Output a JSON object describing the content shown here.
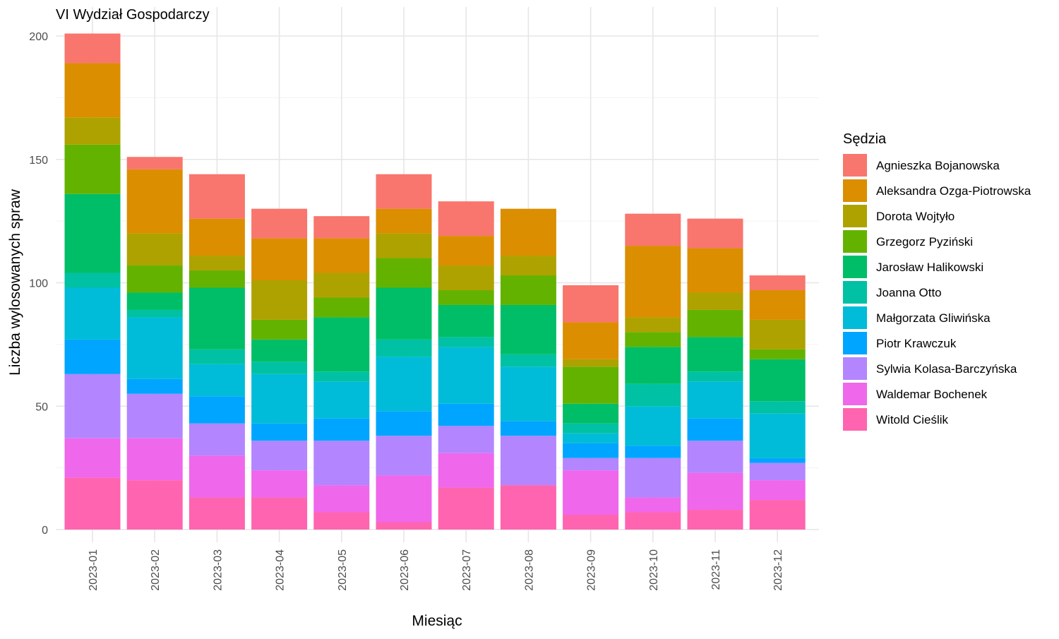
{
  "chart_data": {
    "type": "bar",
    "stacked": true,
    "title": "VI Wydział Gospodarczy",
    "xlabel": "Miesiąc",
    "ylabel": "Liczba wylosowanych spraw",
    "ylim": [
      0,
      200
    ],
    "yticks": [
      0,
      50,
      100,
      150,
      200
    ],
    "grid": true,
    "legend": {
      "title": "Sędzia",
      "position": "right"
    },
    "categories": [
      "2023-01",
      "2023-02",
      "2023-03",
      "2023-04",
      "2023-05",
      "2023-06",
      "2023-07",
      "2023-08",
      "2023-09",
      "2023-10",
      "2023-11",
      "2023-12"
    ],
    "series": [
      {
        "name": "Witold Cieślik",
        "color": "#FF64B0",
        "values": [
          21,
          20,
          13,
          13,
          7,
          3,
          17,
          18,
          6,
          7,
          8,
          12
        ]
      },
      {
        "name": "Waldemar Bochenek",
        "color": "#EF67EB",
        "values": [
          16,
          17,
          17,
          11,
          11,
          19,
          14,
          0,
          18,
          6,
          15,
          8
        ]
      },
      {
        "name": "Sylwia Kolasa-Barczyńska",
        "color": "#B385FF",
        "values": [
          26,
          18,
          13,
          12,
          18,
          16,
          11,
          20,
          5,
          16,
          13,
          7
        ]
      },
      {
        "name": "Piotr Krawczuk",
        "color": "#00A5FF",
        "values": [
          14,
          6,
          11,
          7,
          9,
          10,
          9,
          6,
          6,
          5,
          9,
          2
        ]
      },
      {
        "name": "Małgorzata Gliwińska",
        "color": "#00BCD8",
        "values": [
          21,
          25,
          13,
          20,
          15,
          22,
          23,
          22,
          4,
          16,
          15,
          18
        ]
      },
      {
        "name": "Joanna Otto",
        "color": "#00C1A3",
        "values": [
          6,
          3,
          6,
          5,
          4,
          7,
          4,
          5,
          4,
          9,
          4,
          5
        ]
      },
      {
        "name": "Jarosław Halikowski",
        "color": "#00BE67",
        "values": [
          32,
          7,
          25,
          9,
          22,
          21,
          13,
          20,
          8,
          15,
          14,
          17
        ]
      },
      {
        "name": "Grzegorz Pyziński",
        "color": "#64B200",
        "values": [
          20,
          11,
          7,
          8,
          8,
          12,
          6,
          12,
          15,
          6,
          11,
          4
        ]
      },
      {
        "name": "Dorota Wojtyło",
        "color": "#AEA200",
        "values": [
          11,
          13,
          6,
          16,
          10,
          10,
          10,
          8,
          3,
          6,
          7,
          12
        ]
      },
      {
        "name": "Aleksandra Ozga-Piotrowska",
        "color": "#DB8E00",
        "values": [
          22,
          26,
          15,
          17,
          14,
          10,
          12,
          19,
          15,
          29,
          18,
          12
        ]
      },
      {
        "name": "Agnieszka Bojanowska",
        "color": "#F8766D",
        "values": [
          12,
          5,
          18,
          12,
          9,
          14,
          14,
          0,
          15,
          13,
          12,
          6
        ]
      }
    ]
  }
}
